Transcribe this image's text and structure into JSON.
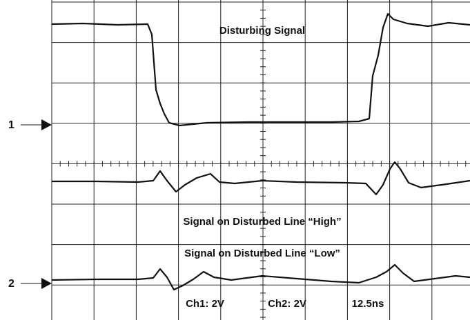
{
  "markers": {
    "channel_1": "1",
    "channel_2": "2"
  },
  "traces": {
    "disturbing": "Disturbing Signal",
    "high": "Signal on Disturbed Line “High”",
    "low": "Signal on Disturbed Line “Low”"
  },
  "settings": {
    "ch1": "Ch1: 2V",
    "ch2": "Ch2: 2V",
    "timebase": "12.5ns"
  }
}
